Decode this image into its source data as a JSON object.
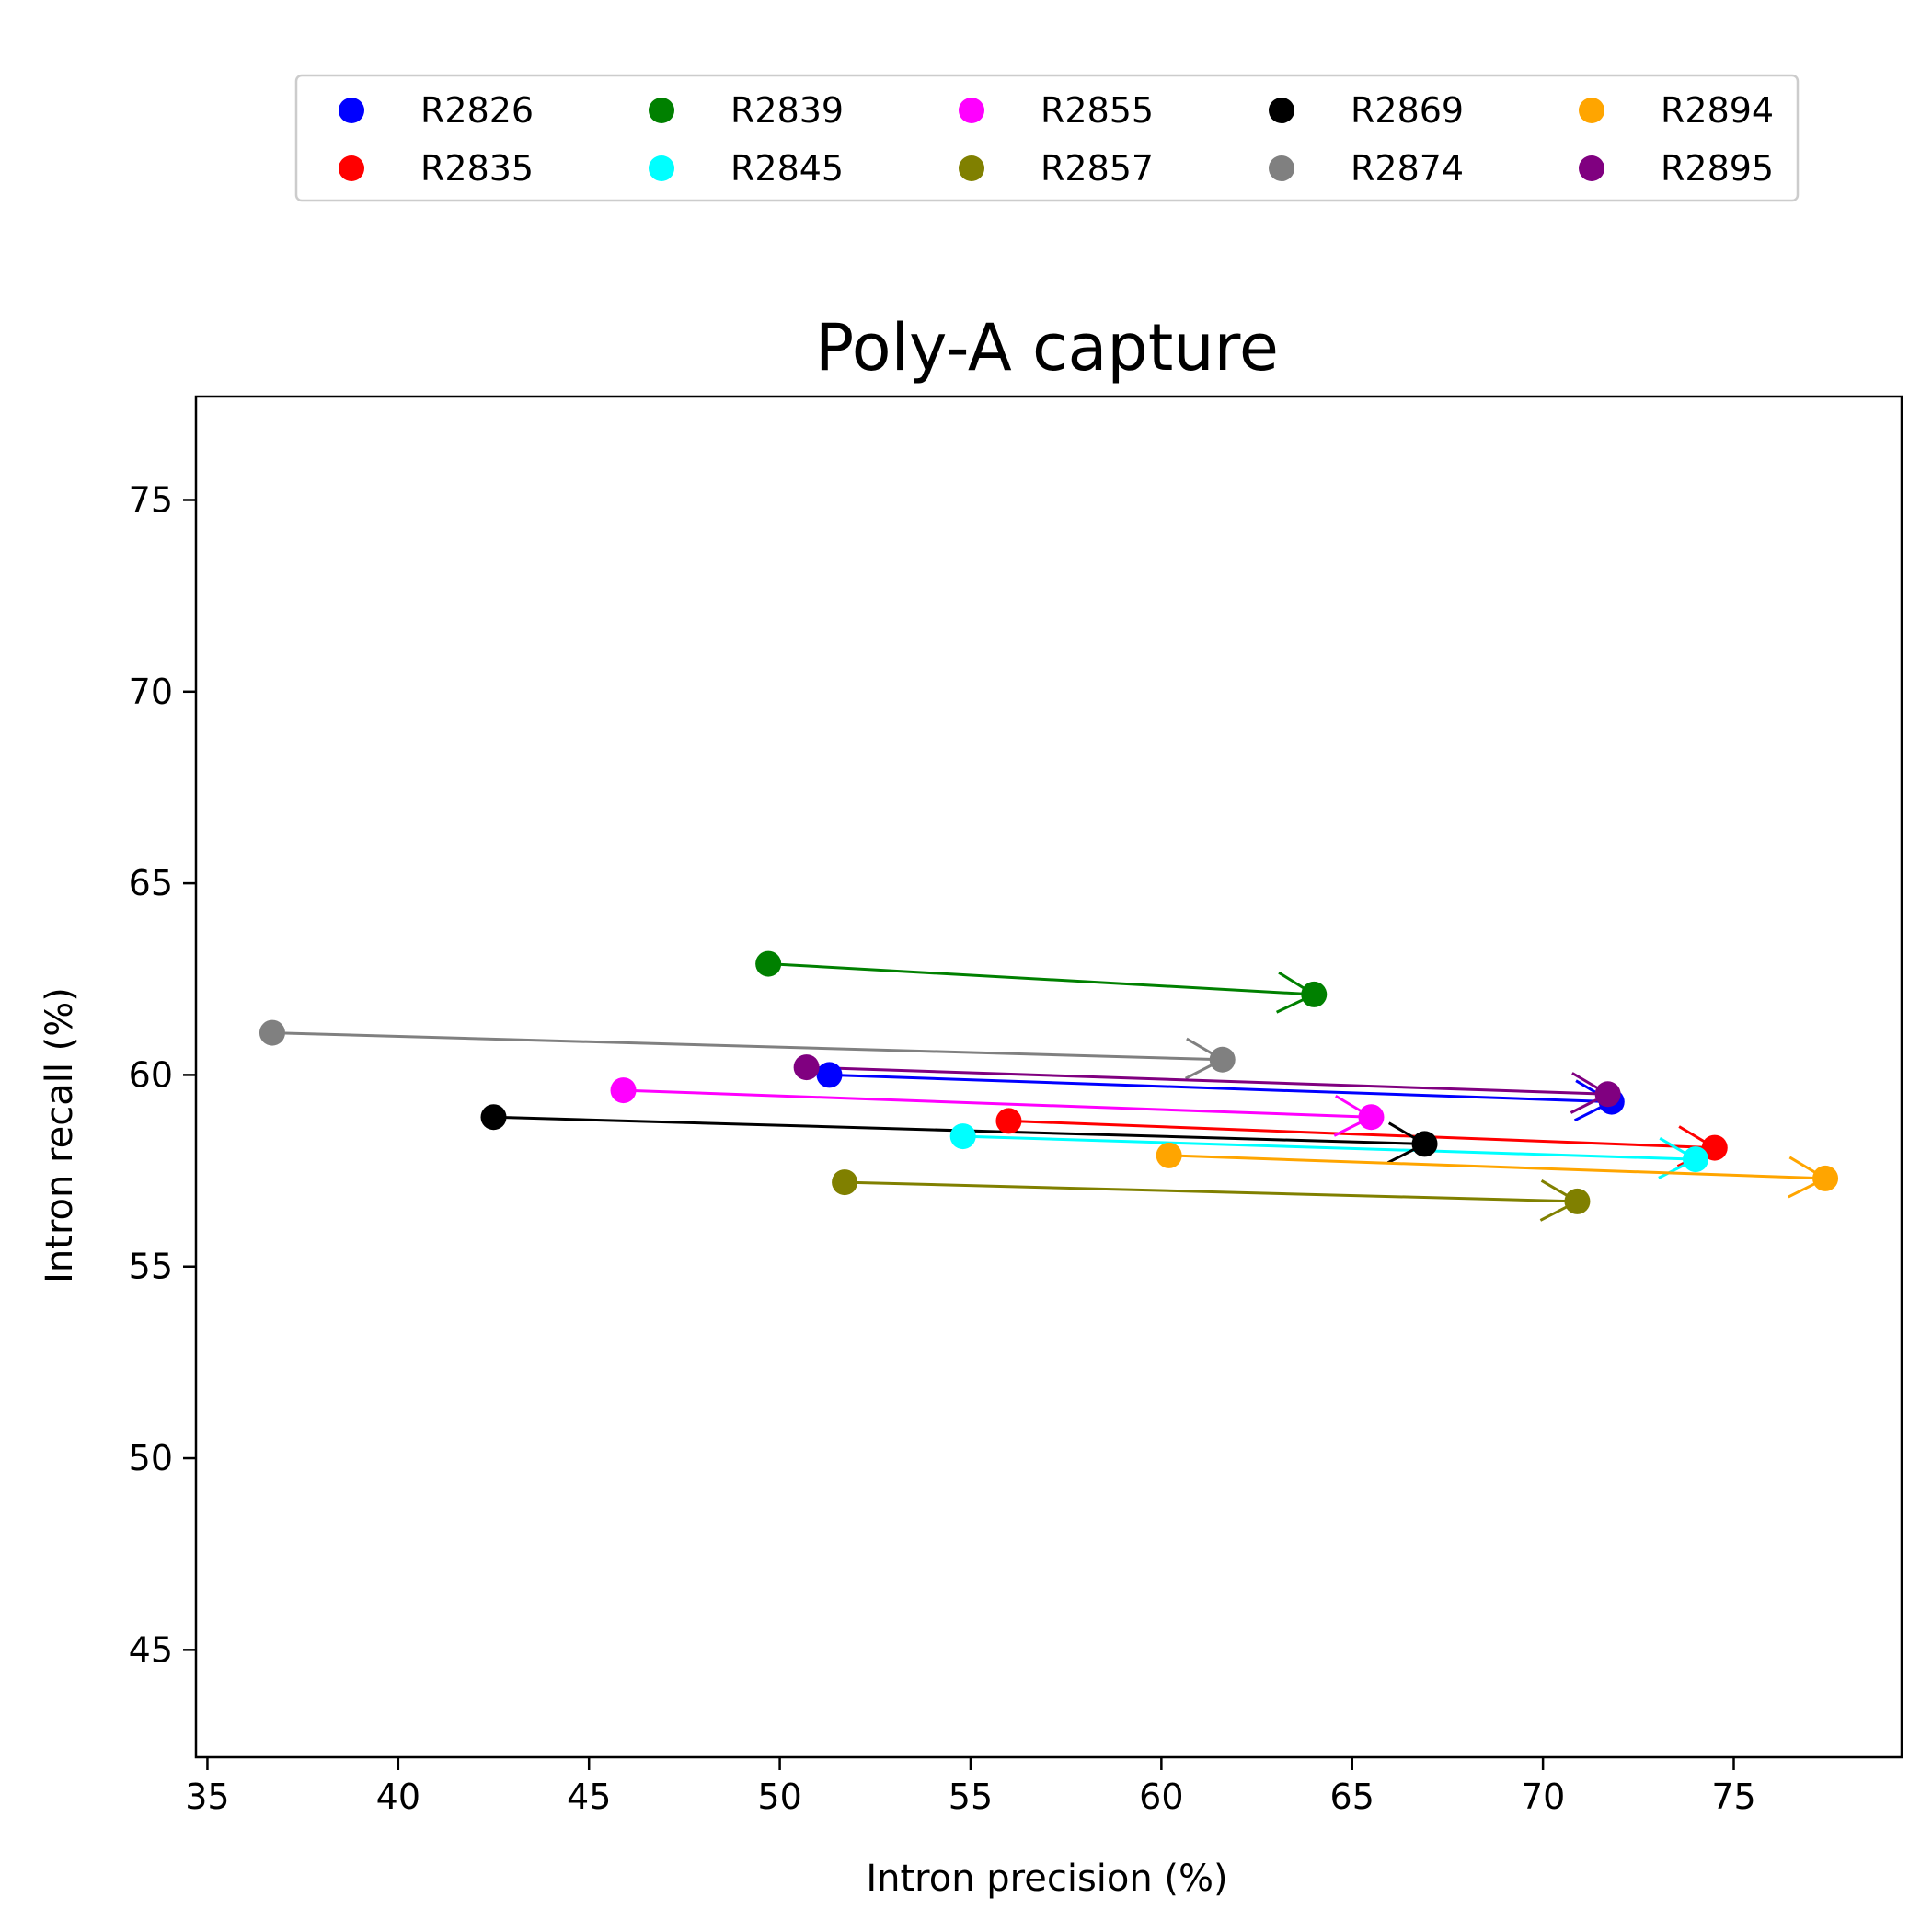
{
  "chart_data": {
    "type": "scatter",
    "title": "Poly-A capture",
    "xlabel": "Intron precision (%)",
    "ylabel": "Intron recall (%)",
    "xlim": [
      34.7,
      79.4
    ],
    "ylim": [
      42.2,
      77.7
    ],
    "xticks": [
      35,
      40,
      45,
      50,
      55,
      60,
      65,
      70,
      75
    ],
    "yticks": [
      45,
      50,
      55,
      60,
      65,
      70,
      75
    ],
    "grid": false,
    "legend": {
      "placement": "top-center",
      "columns": 5
    },
    "series": [
      {
        "name": "R2826",
        "color": "#0000ff",
        "from": [
          51.3,
          60.0
        ],
        "to": [
          71.8,
          59.3
        ]
      },
      {
        "name": "R2835",
        "color": "#ff0000",
        "from": [
          56.0,
          58.8
        ],
        "to": [
          74.5,
          58.1
        ]
      },
      {
        "name": "R2839",
        "color": "#008000",
        "from": [
          49.7,
          62.9
        ],
        "to": [
          64.0,
          62.1
        ]
      },
      {
        "name": "R2845",
        "color": "#00ffff",
        "from": [
          54.8,
          58.4
        ],
        "to": [
          74.0,
          57.8
        ]
      },
      {
        "name": "R2855",
        "color": "#ff00ff",
        "from": [
          45.9,
          59.6
        ],
        "to": [
          65.5,
          58.9
        ]
      },
      {
        "name": "R2857",
        "color": "#808000",
        "from": [
          51.7,
          57.2
        ],
        "to": [
          70.9,
          56.7
        ]
      },
      {
        "name": "R2869",
        "color": "#000000",
        "from": [
          42.5,
          58.9
        ],
        "to": [
          66.9,
          58.2
        ]
      },
      {
        "name": "R2874",
        "color": "#808080",
        "from": [
          36.7,
          61.1
        ],
        "to": [
          61.6,
          60.4
        ]
      },
      {
        "name": "R2894",
        "color": "#ffa500",
        "from": [
          60.2,
          57.9
        ],
        "to": [
          77.4,
          57.3
        ]
      },
      {
        "name": "R2895",
        "color": "#800080",
        "from": [
          50.7,
          60.2
        ],
        "to": [
          71.7,
          59.5
        ]
      }
    ]
  }
}
